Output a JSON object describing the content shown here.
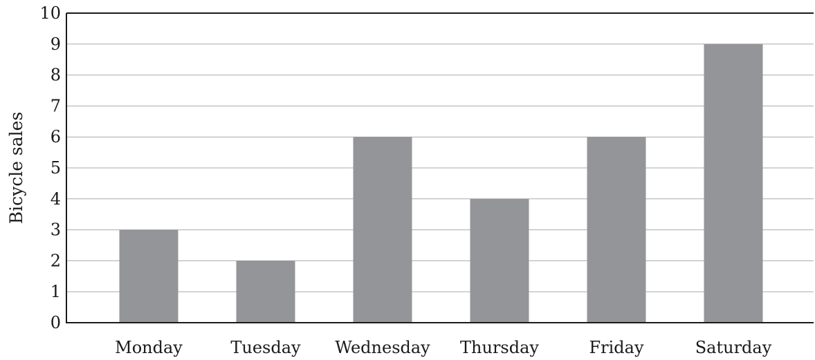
{
  "chart_data": {
    "type": "bar",
    "title": "",
    "xlabel": "",
    "ylabel": "Bicycle sales",
    "categories": [
      "Monday",
      "Tuesday",
      "Wednesday",
      "Thursday",
      "Friday",
      "Saturday"
    ],
    "values": [
      3,
      2,
      6,
      4,
      6,
      9
    ],
    "ylim": [
      0,
      10
    ],
    "yticks": [
      "0",
      "1",
      "2",
      "3",
      "4",
      "5",
      "6",
      "7",
      "8",
      "9",
      "10"
    ],
    "grid": true,
    "bar_color": "#939598"
  }
}
